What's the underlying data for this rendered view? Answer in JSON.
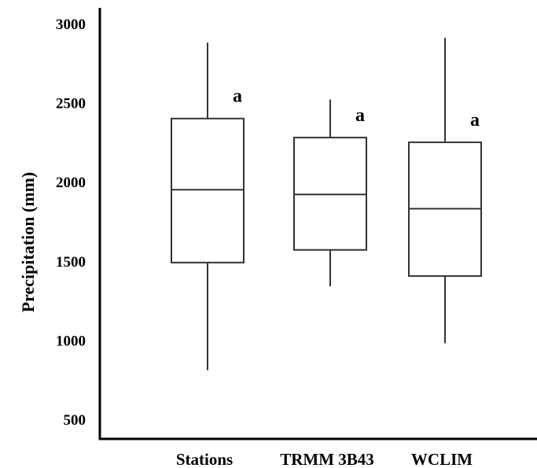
{
  "chart_data": {
    "type": "box",
    "title": "",
    "xlabel": "",
    "ylabel": "Precipitation (mm)",
    "ylim": [
      500,
      3000
    ],
    "yticks": [
      500,
      1000,
      1500,
      2000,
      2500,
      3000
    ],
    "grid": false,
    "categories": [
      "Stations",
      "TRMM 3B43",
      "WCLIM"
    ],
    "boxes": [
      {
        "category": "Stations",
        "min": 810,
        "q1": 1490,
        "median": 1950,
        "q3": 2400,
        "max": 2880,
        "label": "a"
      },
      {
        "category": "TRMM 3B43",
        "min": 1340,
        "q1": 1570,
        "median": 1920,
        "q3": 2280,
        "max": 2520,
        "label": "a"
      },
      {
        "category": "WCLIM",
        "min": 980,
        "q1": 1405,
        "median": 1830,
        "q3": 2250,
        "max": 2910,
        "label": "a"
      }
    ]
  }
}
